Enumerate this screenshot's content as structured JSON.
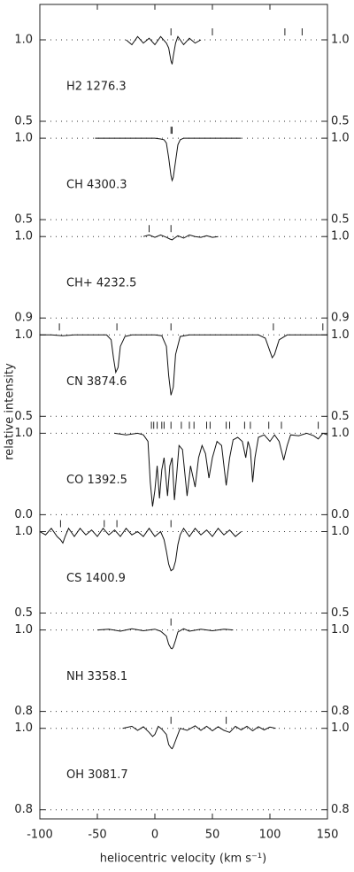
{
  "xlabel": "heliocentric velocity (km s⁻¹)",
  "ylabel": "relative intensity",
  "xlim": [
    -100,
    150
  ],
  "xticks": [
    -100,
    -50,
    0,
    50,
    100,
    150
  ],
  "chart_data": [
    {
      "type": "line",
      "title": "H2  1276.3",
      "ylim": [
        0.5,
        1
      ],
      "yticks": [
        0.5,
        {
          "value": 1,
          "label": "1.0"
        }
      ],
      "components": [
        14,
        50,
        113,
        128
      ],
      "x": [
        -25,
        -20,
        -15,
        -10,
        -5,
        0,
        5,
        10,
        12,
        14,
        15,
        16,
        18,
        20,
        25,
        30,
        35,
        40
      ],
      "values": [
        1.0,
        0.97,
        1.02,
        0.98,
        1.01,
        0.97,
        1.02,
        0.98,
        0.95,
        0.87,
        0.85,
        0.9,
        0.98,
        1.02,
        0.97,
        1.01,
        0.98,
        1.0
      ]
    },
    {
      "type": "line",
      "title": "CH  4300.3",
      "ylim": [
        0.5,
        1
      ],
      "yticks": [
        0.5,
        {
          "value": 1,
          "label": "1.0"
        }
      ],
      "components": [
        14,
        15
      ],
      "x": [
        -52,
        -30,
        -10,
        0,
        5,
        8,
        10,
        12,
        14,
        15,
        16,
        18,
        20,
        22,
        25,
        35,
        50,
        75
      ],
      "values": [
        1,
        1,
        1,
        1,
        0.995,
        0.99,
        0.97,
        0.88,
        0.77,
        0.74,
        0.76,
        0.86,
        0.96,
        0.99,
        1,
        1,
        1,
        1
      ]
    },
    {
      "type": "line",
      "title": "CH+ 4232.5",
      "ylim": [
        0.9,
        1
      ],
      "yticks": [
        0.9,
        {
          "value": 1,
          "label": "1.0"
        }
      ],
      "components": [
        -5,
        14
      ],
      "x": [
        -10,
        -5,
        0,
        5,
        10,
        13,
        15,
        17,
        20,
        25,
        30,
        35,
        40,
        45,
        50,
        55
      ],
      "values": [
        1,
        1.002,
        0.999,
        1.002,
        0.999,
        0.997,
        0.996,
        0.998,
        1.001,
        0.998,
        1.002,
        1,
        0.999,
        1.001,
        0.999,
        1
      ]
    },
    {
      "type": "line",
      "title": "CN  3874.6",
      "ylim": [
        0.5,
        1
      ],
      "yticks": [
        0.5,
        {
          "value": 1,
          "label": "1.0"
        }
      ],
      "components": [
        -83,
        -33,
        14,
        103,
        146
      ],
      "x": [
        -100,
        -90,
        -80,
        -70,
        -60,
        -50,
        -42,
        -38,
        -36,
        -34,
        -32,
        -30,
        -26,
        -20,
        -10,
        0,
        6,
        10,
        12,
        14,
        16,
        18,
        22,
        30,
        50,
        70,
        90,
        96,
        100,
        102,
        104,
        108,
        115,
        130,
        150
      ],
      "values": [
        1,
        1,
        0.995,
        1,
        1,
        1,
        1,
        0.97,
        0.86,
        0.77,
        0.8,
        0.93,
        0.99,
        1,
        1,
        1,
        0.995,
        0.93,
        0.75,
        0.63,
        0.68,
        0.88,
        0.99,
        1,
        1,
        1,
        1,
        0.98,
        0.9,
        0.86,
        0.88,
        0.97,
        1,
        1,
        1
      ]
    },
    {
      "type": "line",
      "title": "CO  1392.5",
      "ylim": [
        0,
        1
      ],
      "yticks": [
        {
          "value": 0,
          "label": "0.0"
        },
        {
          "value": 1,
          "label": "1.0"
        }
      ],
      "components": [
        -3,
        -1,
        2,
        6,
        8,
        14,
        23,
        30,
        34,
        45,
        48,
        62,
        65,
        78,
        83,
        99,
        110,
        142
      ],
      "x": [
        -35,
        -25,
        -15,
        -10,
        -6,
        -4,
        -2,
        0,
        2,
        4,
        6,
        8,
        11,
        13,
        15,
        17,
        19,
        21,
        24,
        28,
        31,
        35,
        38,
        41,
        44,
        47,
        50,
        54,
        58,
        62,
        65,
        68,
        72,
        76,
        79,
        81,
        83,
        85,
        87,
        90,
        95,
        100,
        104,
        108,
        112,
        115,
        118,
        125,
        132,
        138,
        142,
        146,
        150
      ],
      "values": [
        1,
        0.98,
        1.0,
        0.98,
        0.9,
        0.4,
        0.1,
        0.3,
        0.6,
        0.2,
        0.55,
        0.7,
        0.23,
        0.6,
        0.7,
        0.18,
        0.5,
        0.85,
        0.8,
        0.23,
        0.6,
        0.34,
        0.7,
        0.85,
        0.75,
        0.45,
        0.7,
        0.9,
        0.85,
        0.36,
        0.7,
        0.92,
        0.95,
        0.9,
        0.7,
        0.9,
        0.8,
        0.4,
        0.7,
        0.95,
        0.98,
        0.9,
        0.98,
        0.9,
        0.67,
        0.85,
        0.98,
        0.97,
        1.0,
        0.97,
        0.93,
        1.0,
        0.98
      ]
    },
    {
      "type": "line",
      "title": "CS  1400.9",
      "ylim": [
        0.5,
        1
      ],
      "yticks": [
        0.5,
        {
          "value": 1,
          "label": "1.0"
        }
      ],
      "components": [
        -82,
        -44,
        -33,
        14
      ],
      "x": [
        -100,
        -95,
        -90,
        -85,
        -82,
        -80,
        -78,
        -75,
        -70,
        -65,
        -60,
        -55,
        -50,
        -45,
        -40,
        -35,
        -30,
        -25,
        -20,
        -15,
        -10,
        -5,
        0,
        5,
        8,
        10,
        12,
        14,
        16,
        18,
        20,
        22,
        25,
        30,
        35,
        40,
        45,
        50,
        55,
        60,
        65,
        70,
        75
      ],
      "values": [
        1,
        0.98,
        1.02,
        0.97,
        0.95,
        0.93,
        0.97,
        1.02,
        0.97,
        1.02,
        0.98,
        1.01,
        0.97,
        1.02,
        0.98,
        1.01,
        0.97,
        1.02,
        0.98,
        1.0,
        0.97,
        1.02,
        0.97,
        1.0,
        0.95,
        0.88,
        0.8,
        0.76,
        0.77,
        0.82,
        0.92,
        0.98,
        1.02,
        0.97,
        1.02,
        0.98,
        1.01,
        0.97,
        1.02,
        0.98,
        1.01,
        0.97,
        1.0
      ]
    },
    {
      "type": "line",
      "title": "NH  3358.1",
      "ylim": [
        0.8,
        1
      ],
      "yticks": [
        0.8,
        {
          "value": 1,
          "label": "1.0"
        }
      ],
      "components": [
        14
      ],
      "x": [
        -50,
        -40,
        -30,
        -20,
        -10,
        0,
        5,
        10,
        12,
        14,
        15,
        16,
        18,
        20,
        25,
        30,
        40,
        50,
        60,
        68
      ],
      "values": [
        1,
        1.002,
        0.997,
        1.003,
        0.998,
        1.002,
        0.997,
        0.985,
        0.965,
        0.955,
        0.954,
        0.958,
        0.975,
        0.995,
        1.003,
        0.997,
        1.002,
        0.998,
        1.002,
        1
      ]
    },
    {
      "type": "line",
      "title": "OH  3081.7",
      "ylim": [
        0.8,
        1
      ],
      "yticks": [
        0.8,
        {
          "value": 1,
          "label": "1.0"
        }
      ],
      "components": [
        14,
        62
      ],
      "x": [
        -28,
        -20,
        -15,
        -10,
        -5,
        -2,
        0,
        3,
        6,
        10,
        12,
        14,
        15,
        16,
        18,
        22,
        28,
        35,
        40,
        45,
        50,
        55,
        60,
        65,
        70,
        75,
        80,
        85,
        90,
        95,
        100,
        105
      ],
      "values": [
        1,
        1.005,
        0.995,
        1.004,
        0.99,
        0.98,
        0.985,
        1.005,
        0.998,
        0.985,
        0.96,
        0.952,
        0.95,
        0.955,
        0.97,
        1.0,
        0.995,
        1.006,
        0.995,
        1.005,
        0.994,
        1.004,
        0.995,
        0.99,
        1.005,
        0.996,
        1.005,
        0.994,
        1.004,
        0.996,
        1.003,
        1
      ]
    }
  ]
}
